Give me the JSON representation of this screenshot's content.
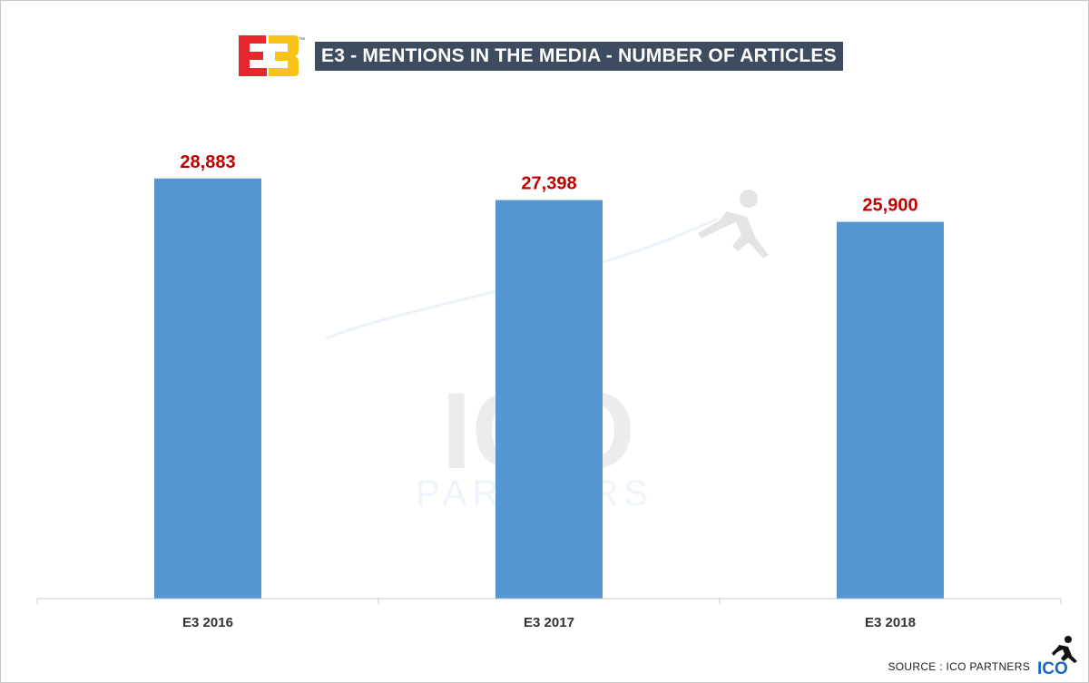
{
  "header": {
    "logo_text": "E3",
    "logo_tm": "™",
    "title": "E3 - MENTIONS IN THE MEDIA - NUMBER OF ARTICLES"
  },
  "watermark": {
    "main": "ICO",
    "sub": "PARTNERS"
  },
  "footer": {
    "source": "SOURCE : ICO PARTNERS",
    "brand": "ICO"
  },
  "colors": {
    "bar": "#5595d1",
    "value_label": "#c00000",
    "title_bg": "#3d4d5f",
    "axis": "#c8c8c8",
    "e3_red": "#e8262c",
    "e3_yellow": "#f6c316"
  },
  "chart_data": {
    "type": "bar",
    "title": "E3 - MENTIONS IN THE MEDIA - NUMBER OF ARTICLES",
    "xlabel": "",
    "ylabel": "",
    "categories": [
      "E3 2016",
      "E3 2017",
      "E3 2018"
    ],
    "values": [
      28883,
      27398,
      25900
    ],
    "value_labels": [
      "28,883",
      "27,398",
      "25,900"
    ],
    "ylim": [
      0,
      31300
    ],
    "grid": false,
    "legend": "none"
  }
}
